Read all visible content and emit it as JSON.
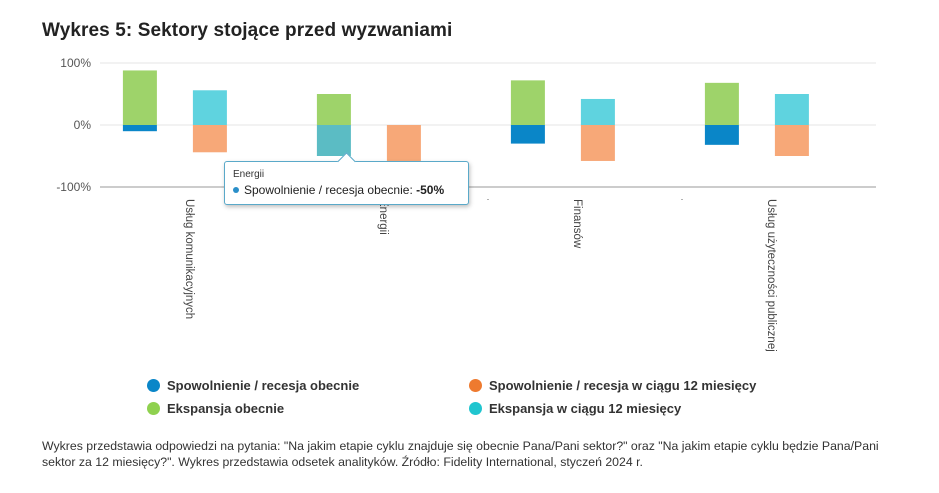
{
  "title": "Wykres 5: Sektory stojące przed wyzwaniami",
  "chart_data": {
    "type": "bar",
    "categories": [
      "Usług komunikacyjnych",
      "Energii",
      "Finansów",
      "Usług użyteczności publicznej"
    ],
    "series": [
      {
        "name": "Spowolnienie / recesja obecnie",
        "color": "#0a86c8",
        "values": [
          -10,
          -50,
          -30,
          -32
        ]
      },
      {
        "name": "Ekspansja obecnie",
        "color": "#9ed36a",
        "values": [
          88,
          50,
          72,
          68
        ]
      },
      {
        "name": "Spowolnienie / recesja w ciągu 12 miesięcy",
        "color": "#f7a878",
        "values": [
          -44,
          -58,
          -58,
          -50
        ]
      },
      {
        "name": "Ekspansja w ciągu 12 miesięcy",
        "color": "#5fd3df",
        "values": [
          56,
          0,
          42,
          50
        ]
      }
    ],
    "y_ticks": [
      {
        "value": 100,
        "label": "100%"
      },
      {
        "value": 0,
        "label": "0%"
      },
      {
        "value": -100,
        "label": "-100%"
      }
    ],
    "ylim": [
      -100,
      100
    ],
    "grid": true,
    "legend_position": "bottom",
    "highlighted": {
      "category_index": 1,
      "series_index": 0
    }
  },
  "legend": [
    {
      "label": "Spowolnienie / recesja obecnie",
      "color": "#0a86c8"
    },
    {
      "label": "Spowolnienie / recesja w ciągu 12 miesięcy",
      "color": "#ee7a2f"
    },
    {
      "label": "Ekspansja obecnie",
      "color": "#8fd14f"
    },
    {
      "label": "Ekspansja w ciągu 12 miesięcy",
      "color": "#20c5cf"
    }
  ],
  "tooltip": {
    "header": "Energii",
    "series": "Spowolnienie / recesja obecnie:",
    "value": "-50%",
    "dot_color": "#2a8fc9"
  },
  "note": "Wykres przedstawia odpowiedzi na pytania: \"Na jakim etapie cyklu znajduje się obecnie Pana/Pani sektor?\" oraz \"Na jakim etapie cyklu będzie Pana/Pani sektor za 12 miesięcy?\". Wykres przedstawia odsetek analityków. Źródło: Fidelity International, styczeń 2024 r."
}
